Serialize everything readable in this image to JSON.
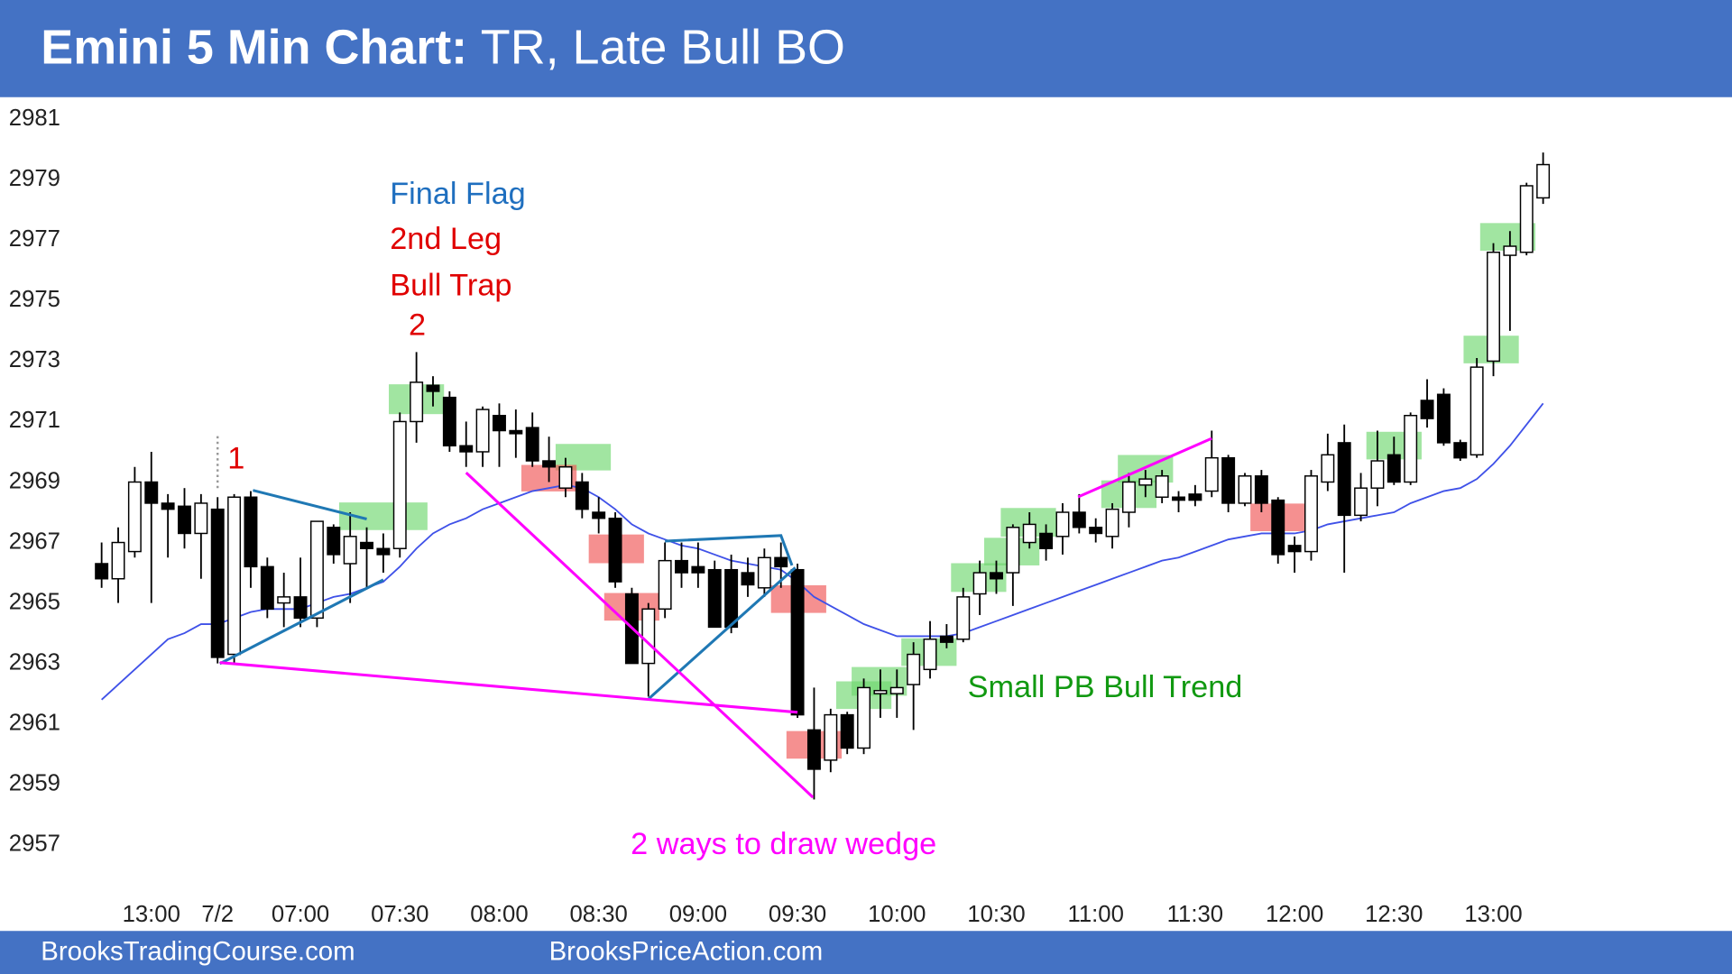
{
  "chart_data": {
    "type": "candlestick",
    "title": "Emini 5 Min Chart:",
    "subtitle": "TR, Late Bull BO",
    "sources": [
      "BrooksTradingCourse.com",
      "BrooksPriceAction.com"
    ],
    "annotations": [
      {
        "text": "Final Flag",
        "color": "#1f6fbf"
      },
      {
        "text": "2nd Leg",
        "color": "#e00000"
      },
      {
        "text": "Bull Trap",
        "color": "#e00000"
      },
      {
        "text": "2",
        "color": "#e00000"
      },
      {
        "text": "1",
        "color": "#e00000"
      },
      {
        "text": "2 ways to draw wedge",
        "color": "#ff00ff"
      },
      {
        "text": "Small PB Bull Trend",
        "color": "#119911"
      }
    ],
    "categories": [
      null,
      null,
      null,
      "13:00",
      null,
      null,
      null,
      "7/2",
      null,
      null,
      null,
      null,
      "07:00",
      null,
      null,
      null,
      null,
      null,
      "07:30",
      null,
      null,
      null,
      null,
      null,
      "08:00",
      null,
      null,
      null,
      null,
      null,
      "08:30",
      null,
      null,
      null,
      null,
      null,
      "09:00",
      null,
      null,
      null,
      null,
      null,
      "09:30",
      null,
      null,
      null,
      null,
      null,
      "10:00",
      null,
      null,
      null,
      null,
      null,
      "10:30",
      null,
      null,
      null,
      null,
      null,
      "11:00",
      null,
      null,
      null,
      null,
      null,
      "11:30",
      null,
      null,
      null,
      null,
      null,
      "12:00",
      null,
      null,
      null,
      null,
      null,
      "12:30",
      null,
      null,
      null,
      null,
      null,
      "13:00",
      null,
      null,
      null
    ],
    "open": [
      2966.3,
      2965.8,
      2966.7,
      2969,
      2968.3,
      2968.2,
      2967.3,
      2968.1,
      2963.3,
      2968.5,
      2966.2,
      2965,
      2965.2,
      2964.5,
      2967.5,
      2966.3,
      2967,
      2966.8,
      2966.8,
      2971,
      2972.2,
      2971.8,
      2970.2,
      2970,
      2971.2,
      2970.7,
      2970.8,
      2969.7,
      2968.8,
      2969,
      2968,
      2967.8,
      2965.3,
      2963,
      2964.8,
      2966.4,
      2966.2,
      2966.1,
      2966.1,
      2966,
      2965.5,
      2966.5,
      2966.1,
      2960.8,
      2959.8,
      2961.3,
      2960.2,
      2962,
      2962,
      2962.3,
      2962.8,
      2963.9,
      2963.8,
      2965.3,
      2966,
      2966,
      2967,
      2967.3,
      2967.2,
      2968,
      2967.5,
      2967.2,
      2968,
      2968.9,
      2968.5,
      2968.5,
      2968.6,
      2968.7,
      2969.8,
      2968.3,
      2969.2,
      2968.4,
      2966.9,
      2966.7,
      2969,
      2970.3,
      2967.9,
      2968.8,
      2969.9,
      2969,
      2971.7,
      2971.9,
      2970.3,
      2969.9,
      2973,
      2976.5,
      2976.6,
      2978.4
    ],
    "high": [
      2967,
      2967.5,
      2969.5,
      2970,
      2968.6,
      2968.8,
      2968.6,
      2968.5,
      2968.6,
      2968.7,
      2966.5,
      2966,
      2966.5,
      2967.7,
      2967.6,
      2968,
      2967.5,
      2967.3,
      2971.3,
      2973.3,
      2972.5,
      2972,
      2971,
      2971.5,
      2971.6,
      2971.4,
      2971.3,
      2970.5,
      2969.8,
      2969.3,
      2968.5,
      2968,
      2965.5,
      2965,
      2967,
      2967,
      2967,
      2966.4,
      2966.6,
      2966.5,
      2966.8,
      2967,
      2966.3,
      2962.2,
      2961.5,
      2961.4,
      2962.5,
      2962.8,
      2962.8,
      2963.7,
      2964.4,
      2964.3,
      2965.5,
      2966.4,
      2966.4,
      2967.6,
      2968,
      2967.6,
      2968.3,
      2968.6,
      2967.8,
      2968.3,
      2969.3,
      2969.4,
      2969.4,
      2968.7,
      2968.9,
      2970.7,
      2969.9,
      2969.3,
      2969.4,
      2968.5,
      2967.2,
      2969.4,
      2970.6,
      2970.9,
      2969.3,
      2970.7,
      2970.5,
      2971.3,
      2972.4,
      2972.1,
      2970.4,
      2973.1,
      2976.9,
      2977.3,
      2978.9,
      2979.9
    ],
    "low": [
      2965.5,
      2965,
      2966.5,
      2965,
      2966.5,
      2966.8,
      2965.8,
      2963,
      2963,
      2965.5,
      2964.5,
      2964.2,
      2964.2,
      2964.2,
      2966.3,
      2965,
      2965.5,
      2966,
      2966.5,
      2970.3,
      2971.5,
      2970,
      2969.5,
      2969.5,
      2969.5,
      2969.8,
      2969.5,
      2969,
      2968.5,
      2967.8,
      2967.3,
      2965.5,
      2963,
      2961.9,
      2964.5,
      2965.5,
      2965.5,
      2964.2,
      2964,
      2965.2,
      2965.2,
      2965.5,
      2961.2,
      2958.5,
      2959.4,
      2960,
      2960,
      2961.2,
      2961.2,
      2960.8,
      2962.5,
      2963.5,
      2963.7,
      2964.6,
      2965.3,
      2964.9,
      2966.8,
      2966.4,
      2966.6,
      2967.3,
      2967,
      2966.8,
      2967.5,
      2968.5,
      2968.3,
      2968,
      2968.2,
      2968.5,
      2968,
      2968.2,
      2968,
      2966.3,
      2966,
      2966.4,
      2968.7,
      2966,
      2967.7,
      2968.2,
      2968.9,
      2968.9,
      2970.8,
      2970.2,
      2969.7,
      2969.8,
      2972.5,
      2974,
      2976.5,
      2978.2
    ],
    "close": [
      2965.8,
      2967,
      2969,
      2968.3,
      2968.1,
      2967.3,
      2968.3,
      2963.2,
      2968.5,
      2966.2,
      2964.8,
      2965.2,
      2964.5,
      2967.7,
      2966.6,
      2967.2,
      2966.8,
      2966.6,
      2971,
      2972.3,
      2972,
      2970.2,
      2970,
      2971.4,
      2970.7,
      2970.6,
      2969.7,
      2969.5,
      2969.5,
      2968.1,
      2967.8,
      2965.7,
      2963,
      2964.8,
      2966.4,
      2966,
      2966,
      2964.2,
      2964.2,
      2965.6,
      2966.5,
      2966.2,
      2961.3,
      2959.5,
      2961.3,
      2960.2,
      2962.2,
      2962.1,
      2962.2,
      2963.3,
      2963.8,
      2963.7,
      2965.2,
      2966,
      2965.8,
      2967.5,
      2967.6,
      2966.8,
      2968,
      2967.5,
      2967.3,
      2968.1,
      2969,
      2969.1,
      2969.2,
      2968.4,
      2968.4,
      2969.8,
      2968.3,
      2969.2,
      2968.3,
      2966.6,
      2966.7,
      2969.2,
      2969.9,
      2967.9,
      2968.8,
      2969.7,
      2969,
      2971.2,
      2971.1,
      2970.3,
      2969.8,
      2972.8,
      2976.6,
      2976.8,
      2978.8,
      2979.5
    ],
    "ema": [
      2961.8,
      2962.3,
      2962.8,
      2963.3,
      2963.8,
      2964.0,
      2964.3,
      2964.3,
      2964.5,
      2964.7,
      2964.8,
      2964.8,
      2964.8,
      2965.0,
      2965.2,
      2965.3,
      2965.5,
      2965.7,
      2966.2,
      2966.8,
      2967.3,
      2967.6,
      2967.8,
      2968.1,
      2968.3,
      2968.5,
      2968.7,
      2968.8,
      2968.9,
      2968.8,
      2968.5,
      2968.1,
      2967.6,
      2967.3,
      2967.1,
      2966.9,
      2966.8,
      2966.6,
      2966.4,
      2966.3,
      2966.2,
      2966.1,
      2965.7,
      2965.2,
      2964.9,
      2964.6,
      2964.3,
      2964.1,
      2963.9,
      2963.9,
      2963.9,
      2963.9,
      2964.0,
      2964.2,
      2964.4,
      2964.6,
      2964.8,
      2965.0,
      2965.2,
      2965.4,
      2965.6,
      2965.8,
      2966.0,
      2966.2,
      2966.4,
      2966.5,
      2966.7,
      2966.9,
      2967.1,
      2967.2,
      2967.3,
      2967.3,
      2967.3,
      2967.4,
      2967.6,
      2967.7,
      2967.8,
      2967.9,
      2968.0,
      2968.3,
      2968.5,
      2968.7,
      2968.8,
      2969.1,
      2969.6,
      2970.2,
      2970.9,
      2971.6
    ],
    "up_color": "#ffffff",
    "down_color": "#000000",
    "ema_color": "#3f51e8",
    "ylim": [
      2957,
      2981
    ],
    "yticks": [
      2957,
      2959,
      2961,
      2963,
      2965,
      2967,
      2969,
      2971,
      2973,
      2975,
      2977,
      2979,
      2981
    ]
  }
}
